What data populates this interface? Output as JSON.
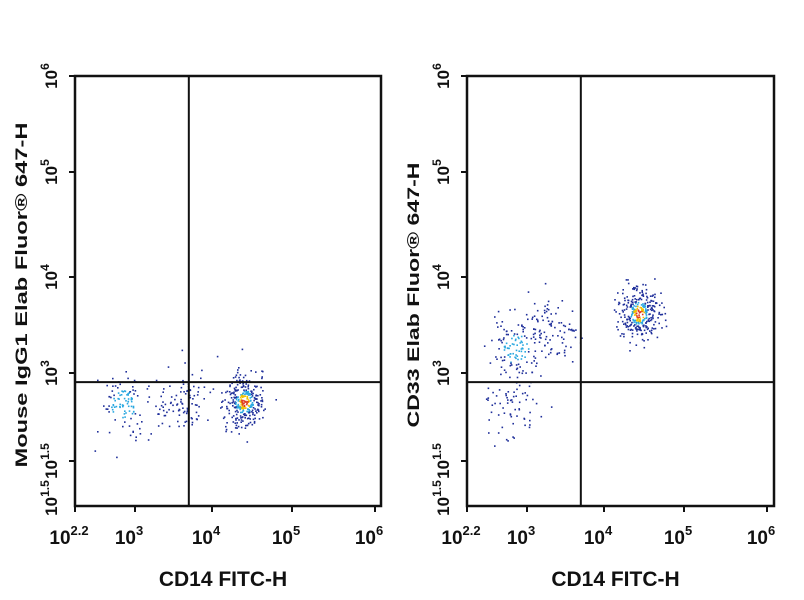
{
  "chart_data": [
    {
      "type": "scatter",
      "title": "",
      "xlabel": "CD14 FITC-H",
      "ylabel": "Mouse IgG1 Elab Fluor® 647-H",
      "x_scale": "log",
      "y_scale": "log",
      "xlim": [
        158,
        1000000
      ],
      "ylim": [
        10,
        1000000
      ],
      "x_ticks": [
        {
          "label": "10",
          "sup": "2.2"
        },
        {
          "label": "10",
          "sup": "3"
        },
        {
          "label": "10",
          "sup": "4"
        },
        {
          "label": "10",
          "sup": "5"
        },
        {
          "label": "10",
          "sup": "6"
        }
      ],
      "y_ticks": [
        {
          "label": "10",
          "sup": "1.5"
        },
        {
          "label": "10",
          "sup": "1.5"
        },
        {
          "label": "10",
          "sup": "3"
        },
        {
          "label": "10",
          "sup": "4"
        },
        {
          "label": "10",
          "sup": "5"
        },
        {
          "label": "10",
          "sup": "6"
        }
      ],
      "quadrant_gate": {
        "x": 5000,
        "y": 700
      },
      "grid": false,
      "clusters": [
        {
          "x": 700,
          "y": 300,
          "n": 110
        },
        {
          "x": 25000,
          "y": 330,
          "n": 320
        },
        {
          "x": 4000,
          "y": 340,
          "n": 90
        }
      ]
    },
    {
      "type": "scatter",
      "title": "",
      "xlabel": "CD14 FITC-H",
      "ylabel": "CD33 Elab Fluor® 647-H",
      "x_scale": "log",
      "y_scale": "log",
      "xlim": [
        158,
        1000000
      ],
      "ylim": [
        10,
        1000000
      ],
      "x_ticks": [
        {
          "label": "10",
          "sup": "2.2"
        },
        {
          "label": "10",
          "sup": "3"
        },
        {
          "label": "10",
          "sup": "4"
        },
        {
          "label": "10",
          "sup": "5"
        },
        {
          "label": "10",
          "sup": "6"
        }
      ],
      "y_ticks": [
        {
          "label": "10",
          "sup": "1.5"
        },
        {
          "label": "10",
          "sup": "1.5"
        },
        {
          "label": "10",
          "sup": "3"
        },
        {
          "label": "10",
          "sup": "4"
        },
        {
          "label": "10",
          "sup": "5"
        },
        {
          "label": "10",
          "sup": "6"
        }
      ],
      "quadrant_gate": {
        "x": 5000,
        "y": 700
      },
      "grid": false,
      "clusters": [
        {
          "x": 27000,
          "y": 4200,
          "n": 320
        },
        {
          "x": 700,
          "y": 1800,
          "n": 130
        },
        {
          "x": 2000,
          "y": 3000,
          "n": 90
        },
        {
          "x": 650,
          "y": 250,
          "n": 60
        }
      ]
    }
  ],
  "colors": {
    "sparse": "#1f2f9a",
    "mid": "#2aa8e0",
    "dense": "#f2c200",
    "core": "#e03a20",
    "line": "#111111"
  }
}
